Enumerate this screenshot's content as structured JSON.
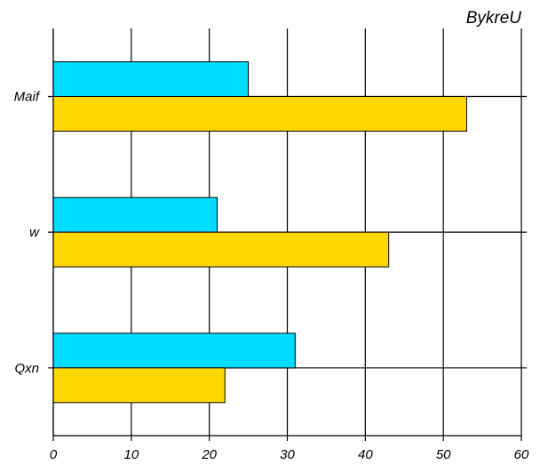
{
  "chart_data": {
    "type": "bar",
    "orientation": "horizontal",
    "title": "BykreU",
    "categories": [
      "Maif",
      "w",
      "Qxn"
    ],
    "series": [
      {
        "values": [
          25,
          21,
          31
        ],
        "color": "#00DDFF"
      },
      {
        "values": [
          53,
          43,
          22
        ],
        "color": "#FFD700"
      }
    ],
    "xlim": [
      0,
      60
    ],
    "xticks": [
      0,
      10,
      20,
      30,
      40,
      50,
      60
    ],
    "xlabel": "",
    "ylabel": "",
    "grid": true,
    "legend": "none"
  }
}
